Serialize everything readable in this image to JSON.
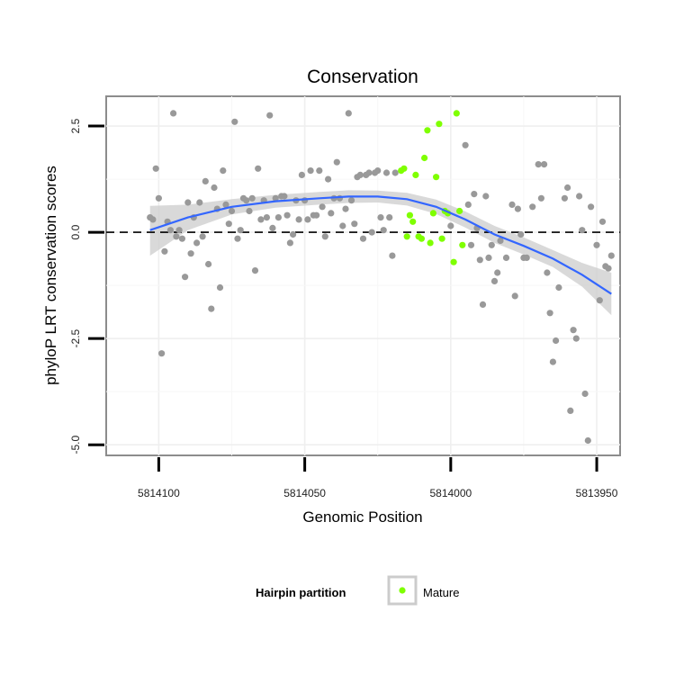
{
  "chart_data": {
    "type": "scatter",
    "title": "Conservation",
    "xlabel": "Genomic Position",
    "ylabel": "phyloP LRT conservation scores",
    "x_reversed": true,
    "xlim": [
      5814118,
      5813942
    ],
    "ylim": [
      -5.25,
      3.2
    ],
    "xticks": [
      5814100,
      5814050,
      5814000,
      5813950
    ],
    "xtick_labels": [
      "5814100",
      "5814050",
      "5814000",
      "5813950"
    ],
    "yticks": [
      2.5,
      0.0,
      -2.5,
      -5.0
    ],
    "ytick_labels": [
      "2.5",
      "0.0",
      "-2.5",
      "-5.0"
    ],
    "grid": true,
    "reference_line": {
      "y": 0,
      "style": "dashed"
    },
    "legend": {
      "title": "Hairpin partition",
      "entries": [
        "Mature"
      ],
      "position": "bottom"
    },
    "colors": {
      "other": "#999999",
      "mature": "#7fff00",
      "smooth": "#3366ff",
      "ribbon": "#cccccc"
    },
    "series": [
      {
        "key": "other",
        "points": [
          [
            5814103,
            0.35
          ],
          [
            5814102,
            0.3
          ],
          [
            5814101,
            1.5
          ],
          [
            5814100,
            0.8
          ],
          [
            5814099,
            -2.85
          ],
          [
            5814098,
            -0.45
          ],
          [
            5814097,
            0.25
          ],
          [
            5814096,
            0.05
          ],
          [
            5814095,
            2.8
          ],
          [
            5814094,
            -0.1
          ],
          [
            5814093,
            0.05
          ],
          [
            5814092,
            -0.15
          ],
          [
            5814091,
            -1.05
          ],
          [
            5814090,
            0.7
          ],
          [
            5814089,
            -0.5
          ],
          [
            5814088,
            0.35
          ],
          [
            5814087,
            -0.25
          ],
          [
            5814086,
            0.7
          ],
          [
            5814085,
            -0.1
          ],
          [
            5814084,
            1.2
          ],
          [
            5814083,
            -0.75
          ],
          [
            5814082,
            -1.8
          ],
          [
            5814081,
            1.05
          ],
          [
            5814080,
            0.55
          ],
          [
            5814079,
            -1.3
          ],
          [
            5814078,
            1.45
          ],
          [
            5814077,
            0.65
          ],
          [
            5814076,
            0.2
          ],
          [
            5814075,
            0.5
          ],
          [
            5814074,
            2.6
          ],
          [
            5814073,
            -0.15
          ],
          [
            5814072,
            0.05
          ],
          [
            5814071,
            0.8
          ],
          [
            5814070,
            0.75
          ],
          [
            5814069,
            0.5
          ],
          [
            5814068,
            0.8
          ],
          [
            5814067,
            -0.9
          ],
          [
            5814066,
            1.5
          ],
          [
            5814065,
            0.3
          ],
          [
            5814064,
            0.75
          ],
          [
            5814063,
            0.35
          ],
          [
            5814062,
            2.75
          ],
          [
            5814061,
            0.1
          ],
          [
            5814060,
            0.8
          ],
          [
            5814059,
            0.35
          ],
          [
            5814058,
            0.85
          ],
          [
            5814057,
            0.85
          ],
          [
            5814056,
            0.4
          ],
          [
            5814055,
            -0.25
          ],
          [
            5814054,
            -0.05
          ],
          [
            5814053,
            0.75
          ],
          [
            5814052,
            0.3
          ],
          [
            5814051,
            1.35
          ],
          [
            5814050,
            0.75
          ],
          [
            5814049,
            0.3
          ],
          [
            5814048,
            1.45
          ],
          [
            5814047,
            0.4
          ],
          [
            5814046,
            0.4
          ],
          [
            5814045,
            1.45
          ],
          [
            5814044,
            0.6
          ],
          [
            5814043,
            -0.1
          ],
          [
            5814042,
            1.25
          ],
          [
            5814041,
            0.45
          ],
          [
            5814040,
            0.8
          ],
          [
            5814039,
            1.65
          ],
          [
            5814038,
            0.8
          ],
          [
            5814037,
            0.15
          ],
          [
            5814036,
            0.55
          ],
          [
            5814035,
            2.8
          ],
          [
            5814034,
            0.75
          ],
          [
            5814033,
            0.2
          ],
          [
            5814032,
            1.3
          ],
          [
            5814031,
            1.35
          ],
          [
            5814030,
            -0.15
          ],
          [
            5814029,
            1.35
          ],
          [
            5814028,
            1.4
          ],
          [
            5814027,
            0.0
          ],
          [
            5814026,
            1.4
          ],
          [
            5814025,
            1.45
          ],
          [
            5814024,
            0.35
          ],
          [
            5814023,
            0.05
          ],
          [
            5814022,
            1.4
          ],
          [
            5814021,
            0.35
          ],
          [
            5814020,
            -0.55
          ],
          [
            5814019,
            1.4
          ],
          [
            5814000,
            0.15
          ],
          [
            5813995,
            2.05
          ],
          [
            5813994,
            0.65
          ],
          [
            5813993,
            -0.3
          ],
          [
            5813992,
            0.9
          ],
          [
            5813991,
            0.1
          ],
          [
            5813990,
            -0.65
          ],
          [
            5813989,
            -1.7
          ],
          [
            5813988,
            0.85
          ],
          [
            5813987,
            -0.6
          ],
          [
            5813986,
            -0.3
          ],
          [
            5813985,
            -1.15
          ],
          [
            5813984,
            -0.95
          ],
          [
            5813983,
            -0.2
          ],
          [
            5813981,
            -0.6
          ],
          [
            5813979,
            0.65
          ],
          [
            5813978,
            -1.5
          ],
          [
            5813977,
            0.55
          ],
          [
            5813976,
            -0.05
          ],
          [
            5813975,
            -0.6
          ],
          [
            5813974,
            -0.6
          ],
          [
            5813972,
            0.6
          ],
          [
            5813970,
            1.6
          ],
          [
            5813969,
            0.8
          ],
          [
            5813968,
            1.6
          ],
          [
            5813967,
            -0.95
          ],
          [
            5813966,
            -1.9
          ],
          [
            5813965,
            -3.05
          ],
          [
            5813964,
            -2.55
          ],
          [
            5813963,
            -1.3
          ],
          [
            5813961,
            0.8
          ],
          [
            5813960,
            1.05
          ],
          [
            5813959,
            -4.2
          ],
          [
            5813958,
            -2.3
          ],
          [
            5813957,
            -2.5
          ],
          [
            5813956,
            0.85
          ],
          [
            5813955,
            0.05
          ],
          [
            5813954,
            -3.8
          ],
          [
            5813953,
            -4.9
          ],
          [
            5813952,
            0.6
          ],
          [
            5813950,
            -0.3
          ],
          [
            5813949,
            -1.6
          ],
          [
            5813948,
            0.25
          ],
          [
            5813947,
            -0.8
          ],
          [
            5813946,
            -0.85
          ],
          [
            5813945,
            -0.55
          ]
        ]
      },
      {
        "key": "mature",
        "name": "Mature",
        "points": [
          [
            5814017,
            1.45
          ],
          [
            5814016,
            1.5
          ],
          [
            5814015,
            -0.1
          ],
          [
            5814014,
            0.4
          ],
          [
            5814013,
            0.25
          ],
          [
            5814012,
            1.35
          ],
          [
            5814011,
            -0.1
          ],
          [
            5814010,
            -0.15
          ],
          [
            5814009,
            1.75
          ],
          [
            5814008,
            2.4
          ],
          [
            5814007,
            -0.25
          ],
          [
            5814006,
            0.45
          ],
          [
            5814005,
            1.3
          ],
          [
            5814004,
            2.55
          ],
          [
            5814003,
            -0.15
          ],
          [
            5814002,
            0.5
          ],
          [
            5814001,
            0.45
          ],
          [
            5813999,
            -0.7
          ],
          [
            5813998,
            2.8
          ],
          [
            5813997,
            0.5
          ],
          [
            5813996,
            -0.3
          ]
        ]
      }
    ],
    "smooth": {
      "x": [
        5814103,
        5814090,
        5814075,
        5814060,
        5814045,
        5814035,
        5814025,
        5814015,
        5814005,
        5813995,
        5813985,
        5813975,
        5813965,
        5813955,
        5813945
      ],
      "y": [
        0.05,
        0.35,
        0.6,
        0.73,
        0.8,
        0.84,
        0.84,
        0.78,
        0.6,
        0.3,
        -0.05,
        -0.32,
        -0.62,
        -1.0,
        -1.45
      ],
      "lower": [
        -0.55,
        0.05,
        0.42,
        0.58,
        0.65,
        0.69,
        0.7,
        0.63,
        0.43,
        0.11,
        -0.25,
        -0.52,
        -0.82,
        -1.28,
        -1.95
      ],
      "upper": [
        0.62,
        0.65,
        0.78,
        0.88,
        0.95,
        0.99,
        0.98,
        0.93,
        0.77,
        0.49,
        0.15,
        -0.12,
        -0.42,
        -0.72,
        -0.95
      ]
    }
  }
}
